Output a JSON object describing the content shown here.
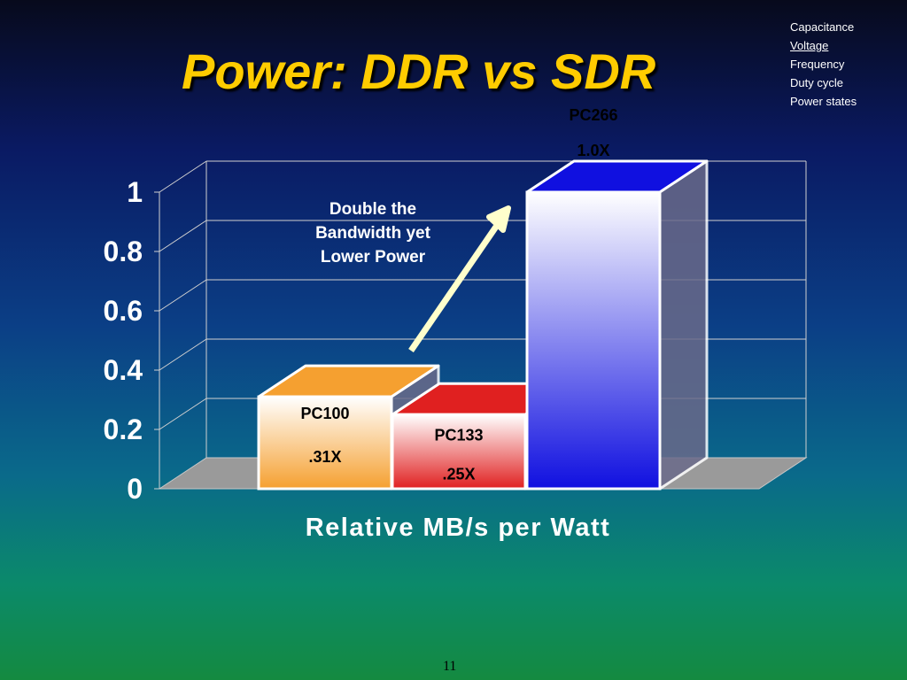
{
  "slide": {
    "title": "Power:  DDR vs SDR",
    "page_number": "11",
    "background_colors": [
      "#070a1c",
      "#0a1a63",
      "#0b3f86",
      "#0a6a8a",
      "#148a40"
    ]
  },
  "topic_list": {
    "items": [
      "Capacitance",
      "Voltage",
      "Frequency",
      "Duty cycle",
      "Power states"
    ],
    "current": "Voltage"
  },
  "annotation": {
    "lines": [
      "Double the",
      "Bandwidth yet",
      "Lower Power"
    ]
  },
  "chart_data": {
    "type": "bar",
    "style": "3d",
    "categories": [
      "PC100",
      "PC133",
      "PC266"
    ],
    "values": [
      0.31,
      0.25,
      1.0
    ],
    "data_labels": [
      ".31X",
      ".25X",
      "1.0X"
    ],
    "colors": [
      "#f5a030",
      "#e02020",
      "#1010e0"
    ],
    "title": "",
    "xlabel": "Relative MB/s per Watt",
    "ylabel": "",
    "ylim": [
      0,
      1
    ],
    "yticks": [
      0,
      0.2,
      0.4,
      0.6,
      0.8,
      1
    ],
    "ytick_labels": [
      "0",
      "0.2",
      "0.4",
      "0.6",
      "0.8",
      "1"
    ],
    "grid": true,
    "legend": "none"
  }
}
